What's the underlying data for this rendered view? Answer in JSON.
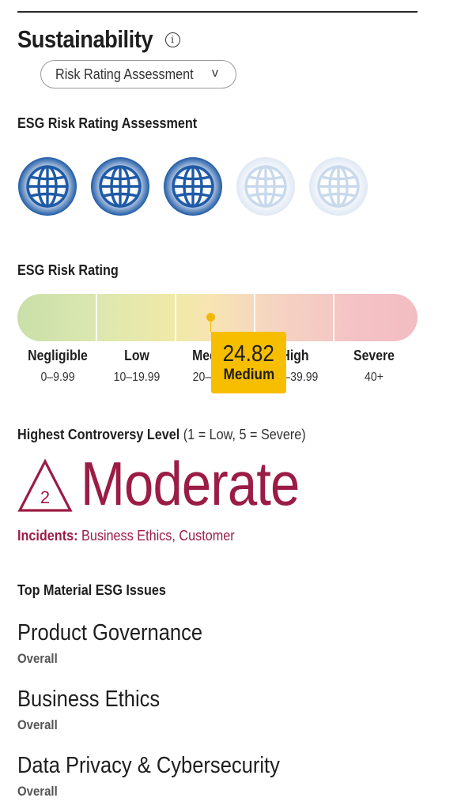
{
  "header": {
    "title": "Sustainability",
    "info_glyph": "i",
    "dropdown_label": "Risk Rating Assessment",
    "dropdown_chevron": "v"
  },
  "assessment": {
    "heading": "ESG Risk Rating Assessment",
    "globes_total": 5,
    "globes_filled": 3,
    "globe_color": "#1f5aa6"
  },
  "risk_rating": {
    "heading": "ESG Risk Rating",
    "score": "24.82",
    "level": "Medium",
    "marker_color": "#f7be00",
    "categories": [
      {
        "name": "Negligible",
        "range": "0–9.99"
      },
      {
        "name": "Low",
        "range": "10–19.99"
      },
      {
        "name": "Medium",
        "range": "20–29.99"
      },
      {
        "name": "High",
        "range": "30–39.99"
      },
      {
        "name": "Severe",
        "range": "40+"
      }
    ]
  },
  "controversy": {
    "heading_bold": "Highest Controversy Level",
    "heading_note": "(1 = Low, 5 = Severe)",
    "level_number": "2",
    "level_word": "Moderate",
    "incidents_label": "Incidents:",
    "incidents_value": "Business Ethics, Customer",
    "accent_color": "#9b1c45"
  },
  "material_issues": {
    "heading": "Top Material ESG Issues",
    "items": [
      {
        "name": "Product Governance",
        "sub": "Overall"
      },
      {
        "name": "Business Ethics",
        "sub": "Overall"
      },
      {
        "name": "Data Privacy & Cybersecurity",
        "sub": "Overall"
      }
    ]
  }
}
